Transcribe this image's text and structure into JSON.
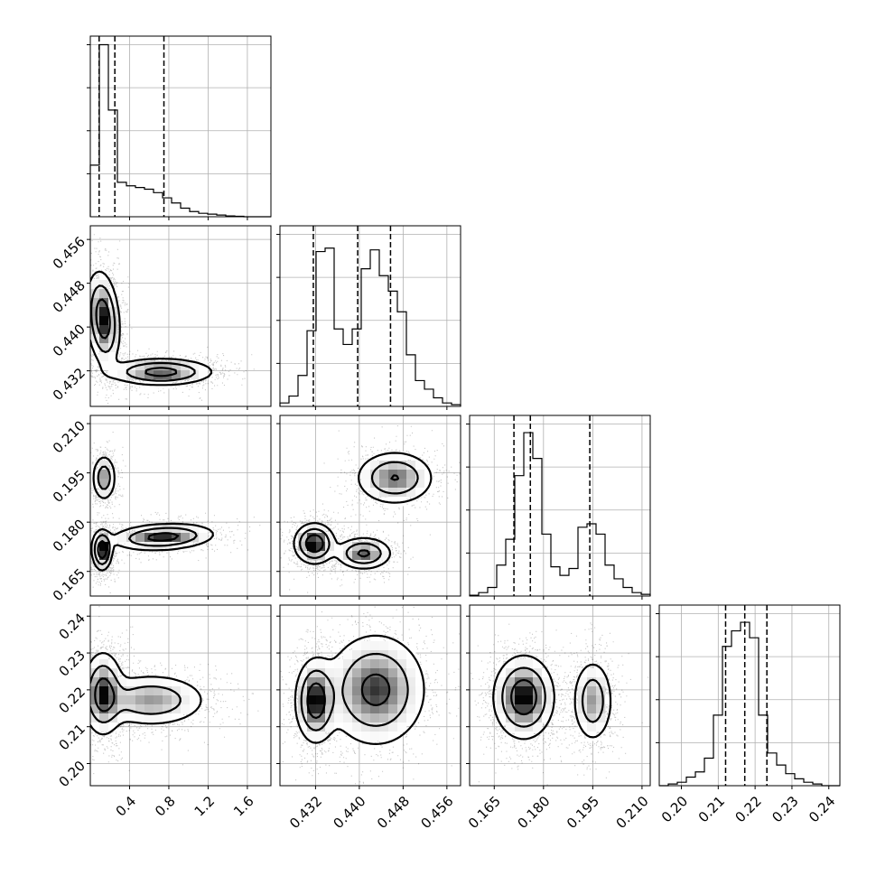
{
  "chart_data": {
    "type": "corner",
    "grid": true,
    "parameters": [
      {
        "xlim": [
          0.0,
          1.84
        ],
        "ticks": [
          0.4,
          0.8,
          1.2,
          1.6
        ],
        "tick_labels": [
          "0.4",
          "0.8",
          "1.2",
          "1.6"
        ],
        "quantiles": [
          0.09,
          0.25,
          0.75
        ]
      },
      {
        "xlim": [
          0.4255,
          0.4585
        ],
        "ticks": [
          0.432,
          0.44,
          0.448,
          0.456
        ],
        "tick_labels": [
          "0.432",
          "0.440",
          "0.448",
          "0.456"
        ],
        "quantiles": [
          0.4316,
          0.4397,
          0.4457
        ]
      },
      {
        "xlim": [
          0.1575,
          0.2125
        ],
        "ticks": [
          0.165,
          0.18,
          0.195,
          0.21
        ],
        "tick_labels": [
          "0.165",
          "0.180",
          "0.195",
          "0.210"
        ],
        "quantiles": [
          0.171,
          0.176,
          0.1941
        ]
      },
      {
        "xlim": [
          0.194,
          0.243
        ],
        "ticks": [
          0.2,
          0.21,
          0.22,
          0.23,
          0.24
        ],
        "tick_labels": [
          "0.20",
          "0.21",
          "0.22",
          "0.23",
          "0.24"
        ],
        "quantiles": [
          0.212,
          0.2172,
          0.2232
        ]
      }
    ],
    "histograms": [
      {
        "param": 0,
        "ymax": 1.0,
        "heights": [
          0.3,
          1.0,
          0.62,
          0.2,
          0.18,
          0.17,
          0.16,
          0.14,
          0.11,
          0.08,
          0.05,
          0.03,
          0.02,
          0.015,
          0.01,
          0.005,
          0.003,
          0.0,
          0.0,
          0.0
        ]
      },
      {
        "param": 1,
        "ymax": 1.0,
        "heights": [
          0.02,
          0.06,
          0.18,
          0.44,
          0.9,
          0.92,
          0.45,
          0.36,
          0.45,
          0.8,
          0.91,
          0.76,
          0.67,
          0.55,
          0.3,
          0.15,
          0.1,
          0.05,
          0.02,
          0.01
        ]
      },
      {
        "param": 2,
        "ymax": 1.0,
        "heights": [
          0.005,
          0.02,
          0.05,
          0.18,
          0.33,
          0.7,
          0.95,
          0.8,
          0.36,
          0.17,
          0.12,
          0.16,
          0.4,
          0.42,
          0.36,
          0.18,
          0.1,
          0.05,
          0.02,
          0.01
        ]
      },
      {
        "param": 3,
        "ymax": 1.0,
        "heights": [
          0.0,
          0.01,
          0.02,
          0.05,
          0.08,
          0.16,
          0.41,
          0.81,
          0.9,
          0.95,
          0.86,
          0.41,
          0.19,
          0.12,
          0.07,
          0.04,
          0.02,
          0.01,
          0.0,
          0.0
        ]
      }
    ],
    "density_modes": [
      {
        "row": 1,
        "col": 0,
        "modes": [
          {
            "x": 0.13,
            "y": 0.4415,
            "sx": 0.08,
            "sy": 0.0042,
            "w": 1.0,
            "theta": -5
          },
          {
            "x": 0.72,
            "y": 0.4318,
            "sx": 0.26,
            "sy": 0.0012,
            "w": 0.85,
            "theta": 0
          }
        ]
      },
      {
        "row": 2,
        "col": 0,
        "modes": [
          {
            "x": 0.14,
            "y": 0.1935,
            "sx": 0.06,
            "sy": 0.0035,
            "w": 0.55,
            "theta": 0
          },
          {
            "x": 0.12,
            "y": 0.1715,
            "sx": 0.05,
            "sy": 0.003,
            "w": 0.95,
            "theta": 0
          },
          {
            "x": 0.74,
            "y": 0.1755,
            "sx": 0.26,
            "sy": 0.002,
            "w": 0.8,
            "theta": -3
          }
        ]
      },
      {
        "row": 2,
        "col": 1,
        "modes": [
          {
            "x": 0.4465,
            "y": 0.1935,
            "sx": 0.0035,
            "sy": 0.004,
            "w": 0.7,
            "theta": 0
          },
          {
            "x": 0.4318,
            "y": 0.1735,
            "sx": 0.0018,
            "sy": 0.003,
            "w": 1.0,
            "theta": 0
          },
          {
            "x": 0.4408,
            "y": 0.1705,
            "sx": 0.0025,
            "sy": 0.0024,
            "w": 0.75,
            "theta": 0
          }
        ]
      },
      {
        "row": 3,
        "col": 0,
        "modes": [
          {
            "x": 0.13,
            "y": 0.219,
            "sx": 0.1,
            "sy": 0.0055,
            "w": 1.0,
            "theta": 0
          },
          {
            "x": 0.62,
            "y": 0.2172,
            "sx": 0.28,
            "sy": 0.0035,
            "w": 0.7,
            "theta": 0
          }
        ]
      },
      {
        "row": 3,
        "col": 1,
        "modes": [
          {
            "x": 0.432,
            "y": 0.217,
            "sx": 0.0018,
            "sy": 0.0055,
            "w": 1.0,
            "theta": 0
          },
          {
            "x": 0.443,
            "y": 0.22,
            "sx": 0.0045,
            "sy": 0.0075,
            "w": 0.85,
            "theta": 0
          }
        ]
      },
      {
        "row": 3,
        "col": 2,
        "modes": [
          {
            "x": 0.174,
            "y": 0.218,
            "sx": 0.0045,
            "sy": 0.0055,
            "w": 1.0,
            "theta": 0
          },
          {
            "x": 0.195,
            "y": 0.217,
            "sx": 0.003,
            "sy": 0.0055,
            "w": 0.6,
            "theta": 0
          }
        ]
      }
    ]
  }
}
